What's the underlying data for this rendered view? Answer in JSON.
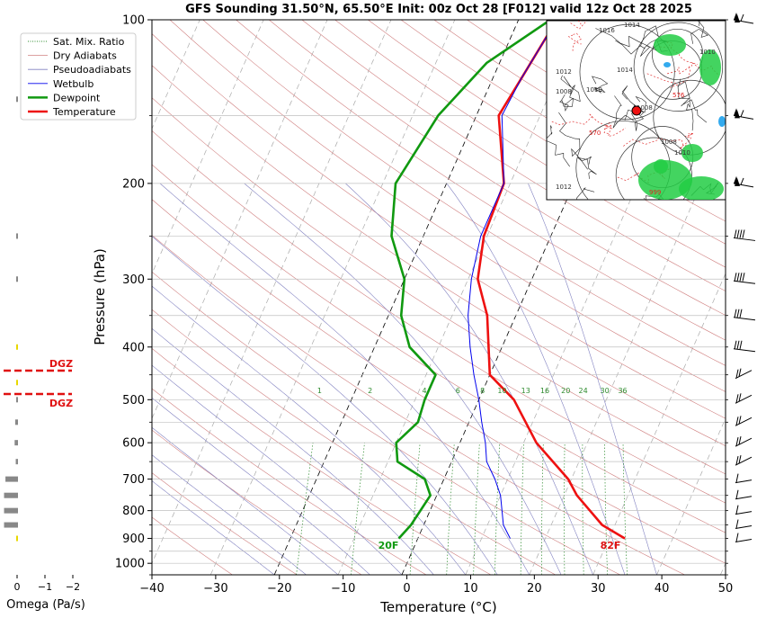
{
  "title": "GFS Sounding 31.50°N, 65.50°E Init: 00z Oct 28 [F012] valid 12z Oct 28 2025",
  "chart_data": {
    "type": "line",
    "xlabel": "Temperature (°C)",
    "ylabel": "Pressure (hPa)",
    "xlim": [
      -40,
      50
    ],
    "ylim": [
      1050,
      100
    ],
    "y_scale": "log",
    "x_ticks": [
      "−40",
      "−30",
      "−20",
      "−10",
      "0",
      "10",
      "20",
      "30",
      "40",
      "50"
    ],
    "y_ticks": [
      "100",
      "200",
      "300",
      "400",
      "500",
      "600",
      "700",
      "800",
      "900",
      "1000"
    ],
    "legend_position": "top-left",
    "legend": [
      {
        "label": "Sat. Mix. Ratio",
        "color": "#2e8b2e",
        "style": "dotted"
      },
      {
        "label": "Dry Adiabats",
        "color": "#d08080",
        "style": "solid"
      },
      {
        "label": "Pseudoadiabats",
        "color": "#8080c0",
        "style": "solid"
      },
      {
        "label": "Wetbulb",
        "color": "#0000ee",
        "style": "solid"
      },
      {
        "label": "Dewpoint",
        "color": "#109910",
        "style": "solid-thick"
      },
      {
        "label": "Temperature",
        "color": "#ee1111",
        "style": "solid-thick"
      }
    ],
    "series": [
      {
        "name": "Temperature",
        "color": "#ee1111",
        "points": [
          [
            32.5,
            900
          ],
          [
            28,
            850
          ],
          [
            22,
            750
          ],
          [
            19.5,
            700
          ],
          [
            12,
            600
          ],
          [
            5.5,
            500
          ],
          [
            0,
            450
          ],
          [
            -4.5,
            350
          ],
          [
            -8.5,
            300
          ],
          [
            -10.5,
            250
          ],
          [
            -11,
            200
          ],
          [
            -16.5,
            150
          ],
          [
            -15.5,
            128
          ],
          [
            -14,
            100
          ]
        ]
      },
      {
        "name": "Dewpoint",
        "color": "#109910",
        "points": [
          [
            -3,
            900
          ],
          [
            -2,
            850
          ],
          [
            -1,
            750
          ],
          [
            -3,
            700
          ],
          [
            -8.5,
            650
          ],
          [
            -10,
            600
          ],
          [
            -8,
            550
          ],
          [
            -8.5,
            500
          ],
          [
            -8.5,
            450
          ],
          [
            -14.5,
            400
          ],
          [
            -18,
            350
          ],
          [
            -20,
            300
          ],
          [
            -25,
            250
          ],
          [
            -28,
            200
          ],
          [
            -26,
            150
          ],
          [
            -22,
            120
          ],
          [
            -15,
            100
          ]
        ]
      },
      {
        "name": "Wetbulb",
        "color": "#0000ee",
        "points": [
          [
            14.5,
            900
          ],
          [
            12.5,
            850
          ],
          [
            10,
            750
          ],
          [
            8,
            700
          ],
          [
            5.5,
            650
          ],
          [
            4,
            600
          ],
          [
            2,
            550
          ],
          [
            0,
            500
          ],
          [
            -2.5,
            450
          ],
          [
            -5,
            400
          ],
          [
            -7.5,
            350
          ],
          [
            -9.5,
            300
          ],
          [
            -11,
            250
          ],
          [
            -11,
            200
          ],
          [
            -16,
            150
          ],
          [
            -15.5,
            128
          ],
          [
            -14,
            100
          ]
        ]
      }
    ],
    "mixing_ratio_labels": [
      "1",
      "2",
      "4",
      "6",
      "8",
      "10",
      "13",
      "16",
      "20",
      "24",
      "30",
      "36"
    ],
    "mixing_ratio_values": [
      1,
      2,
      4,
      6,
      8,
      10,
      13,
      16,
      20,
      24,
      30,
      36
    ],
    "surface_labels": {
      "dewpoint": "20F",
      "temperature": "82F"
    },
    "dgz": {
      "label": "DGZ",
      "pressures": [
        442,
        488
      ]
    },
    "omega": {
      "xlabel": "Omega (Pa/s)",
      "x_ticks": [
        "0",
        "−1",
        "−2"
      ],
      "levels": [
        {
          "p": 140,
          "w": 0.05,
          "color": "#888888"
        },
        {
          "p": 250,
          "w": 0.05,
          "color": "#888888"
        },
        {
          "p": 300,
          "w": 0.05,
          "color": "#888888"
        },
        {
          "p": 400,
          "w": 0.05,
          "color": "#e8d800"
        },
        {
          "p": 465,
          "w": 0.05,
          "color": "#e8d800"
        },
        {
          "p": 500,
          "w": 0.05,
          "color": "#888888"
        },
        {
          "p": 550,
          "w": 0.1,
          "color": "#888888"
        },
        {
          "p": 600,
          "w": 0.12,
          "color": "#888888"
        },
        {
          "p": 650,
          "w": 0.08,
          "color": "#888888"
        },
        {
          "p": 700,
          "w": 0.45,
          "color": "#888888"
        },
        {
          "p": 750,
          "w": 0.5,
          "color": "#888888"
        },
        {
          "p": 800,
          "w": 0.5,
          "color": "#888888"
        },
        {
          "p": 850,
          "w": 0.5,
          "color": "#888888"
        },
        {
          "p": 900,
          "w": 0.05,
          "color": "#e8d800"
        }
      ]
    },
    "wind_barb_pressures": [
      100,
      150,
      200,
      250,
      300,
      350,
      400,
      450,
      500,
      550,
      600,
      650,
      700,
      750,
      800,
      850,
      900
    ]
  },
  "inset_map": {
    "labels": [
      "1016",
      "1014",
      "1012",
      "1014",
      "1010",
      "1008",
      "1010",
      "1008",
      "1012",
      "570",
      "576",
      "1010",
      "999",
      "1008"
    ]
  }
}
